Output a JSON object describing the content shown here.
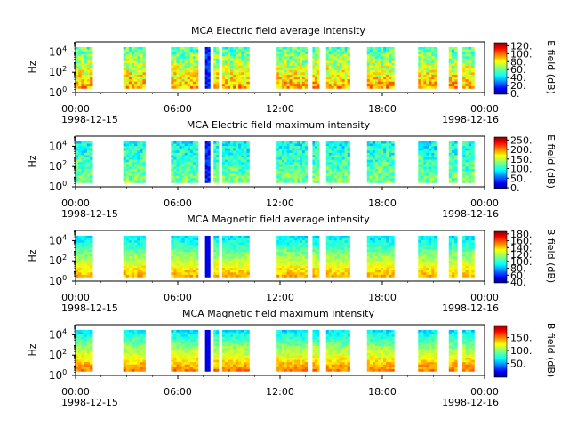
{
  "figure": {
    "time_ticks": [
      "00:00",
      "06:00",
      "12:00",
      "18:00",
      "00:00"
    ],
    "start_date": "1998-12-15",
    "end_date": "1998-12-16",
    "ylabel": "Hz",
    "ytick_labels": [
      "10^0",
      "10^2",
      "10^4"
    ]
  },
  "chart_data": [
    {
      "type": "heatmap",
      "title": "MCA  Electric field average intensity",
      "ylabel": "Hz",
      "yscale": "log",
      "ylim": [
        1,
        100000
      ],
      "colorbar": {
        "label": "E field (dB)",
        "range": [
          0,
          130
        ],
        "ticks": [
          "0.",
          "20.",
          "40.",
          "60.",
          "80.",
          "100.",
          "120."
        ]
      },
      "mean_level": "low-mid (green-yellow, red near 1 Hz)"
    },
    {
      "type": "heatmap",
      "title": "MCA  Electric field maximum intensity",
      "ylabel": "Hz",
      "yscale": "log",
      "ylim": [
        1,
        100000
      ],
      "colorbar": {
        "label": "E field (dB)",
        "range": [
          0,
          270
        ],
        "ticks": [
          "0.",
          "50.",
          "100.",
          "150.",
          "200.",
          "250."
        ]
      },
      "mean_level": "mid (cyan-green)"
    },
    {
      "type": "heatmap",
      "title": "MCA  Magnetic field average intensity",
      "ylabel": "Hz",
      "yscale": "log",
      "ylim": [
        1,
        100000
      ],
      "colorbar": {
        "label": "B field (dB)",
        "range": [
          40,
          190
        ],
        "ticks": [
          "40.",
          "60.",
          "80.",
          "100.",
          "120.",
          "140.",
          "160.",
          "180."
        ]
      },
      "mean_level": "mid-high at low frequency"
    },
    {
      "type": "heatmap",
      "title": "MCA  Magnetic field maximum intensity",
      "ylabel": "Hz",
      "yscale": "log",
      "ylim": [
        1,
        100000
      ],
      "colorbar": {
        "label": "B field (dB)",
        "range": [
          0,
          200
        ],
        "ticks": [
          "50.",
          "100.",
          "150."
        ]
      },
      "mean_level": "mid-high at low frequency"
    }
  ],
  "data_segments_hours": [
    [
      0.0,
      1.0
    ],
    [
      2.8,
      4.1
    ],
    [
      5.6,
      7.2
    ],
    [
      7.6,
      7.9
    ],
    [
      8.1,
      8.4
    ],
    [
      8.6,
      10.2
    ],
    [
      11.8,
      13.6
    ],
    [
      13.9,
      14.3
    ],
    [
      14.7,
      16.1
    ],
    [
      17.1,
      18.7
    ],
    [
      20.1,
      21.2
    ],
    [
      21.9,
      22.4
    ],
    [
      22.7,
      23.4
    ]
  ]
}
